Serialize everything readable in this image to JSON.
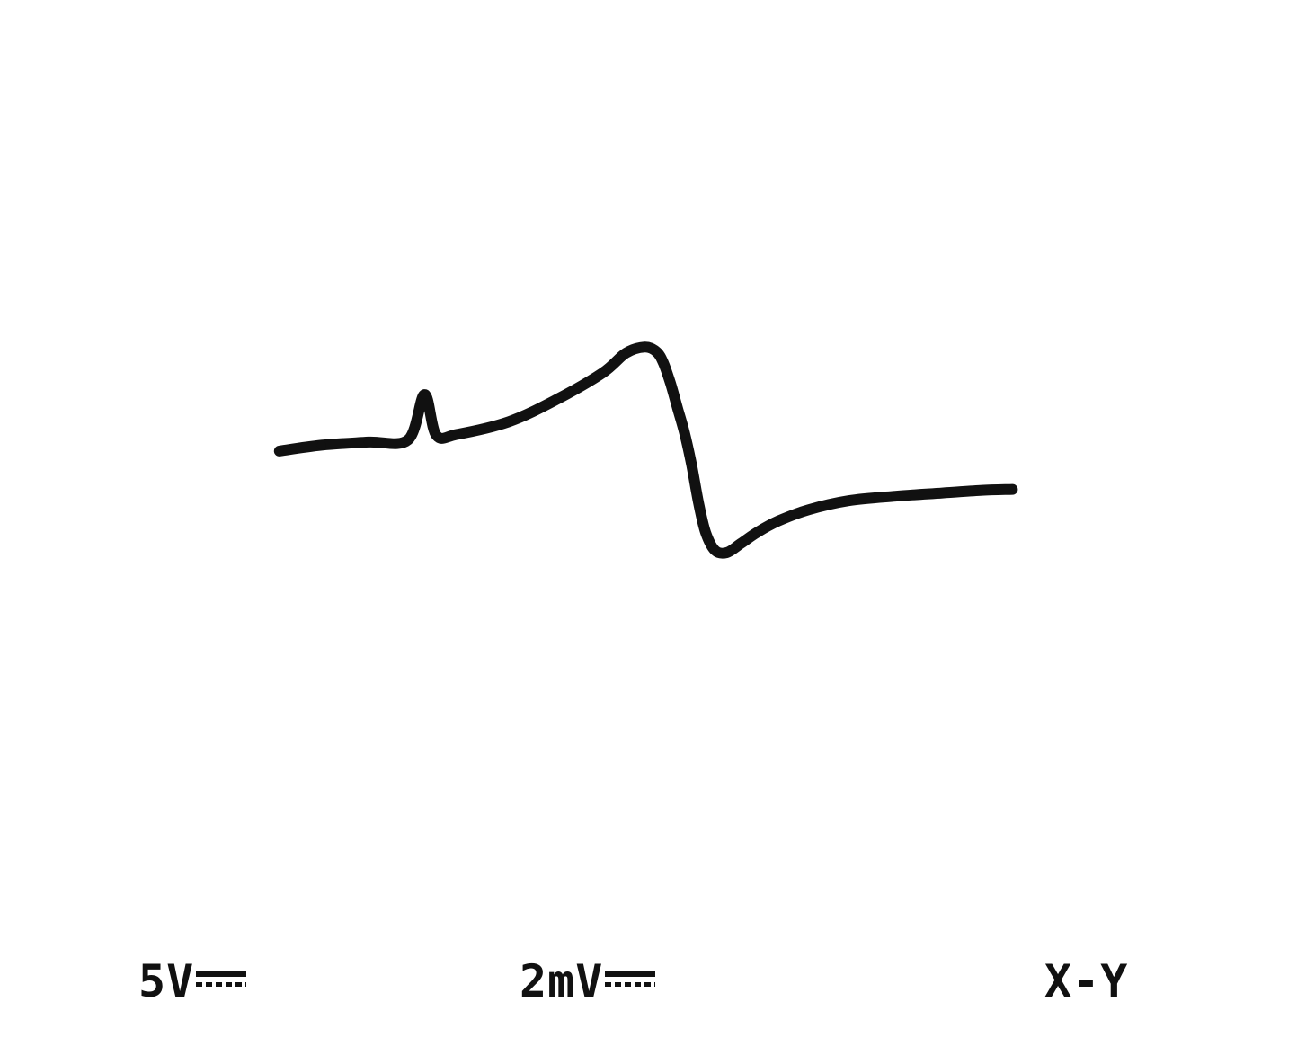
{
  "screen": {
    "ch1_scale": "5V",
    "ch2_scale": "2mV",
    "mode": "X-Y",
    "trace_color": "#111111",
    "background_color": "#ffffff",
    "coupling_icon": "dc-coupling-icon"
  },
  "chart_data": {
    "type": "line",
    "title": "",
    "xlabel": "",
    "ylabel": "",
    "x_scale_per_div": "5V",
    "y_scale_per_div": "2mV",
    "mode": "X-Y",
    "grid": false,
    "legend": "none",
    "xlim": [
      -25,
      25
    ],
    "ylim": [
      -10,
      10
    ],
    "series": [
      {
        "x": [
          -15.8,
          -14.0,
          -12.0,
          -10.3,
          -9.6,
          -9.1,
          -8.2,
          -6.0,
          -4.0,
          -2.0,
          -1.0,
          -0.2,
          0.3,
          0.6,
          0.9,
          1.2,
          1.5,
          1.8,
          2.1,
          2.4,
          2.8,
          3.3,
          3.9,
          4.6,
          5.5,
          6.8,
          8.5,
          10.5,
          12.5,
          14.2,
          15.5
        ],
        "y": [
          0.35,
          0.48,
          0.55,
          0.6,
          1.6,
          0.7,
          0.72,
          1.0,
          1.48,
          2.08,
          2.52,
          2.65,
          2.55,
          2.3,
          1.85,
          1.3,
          0.75,
          0.05,
          -0.8,
          -1.45,
          -1.85,
          -1.9,
          -1.7,
          -1.45,
          -1.2,
          -0.95,
          -0.75,
          -0.65,
          -0.58,
          -0.52,
          -0.5
        ]
      }
    ]
  }
}
